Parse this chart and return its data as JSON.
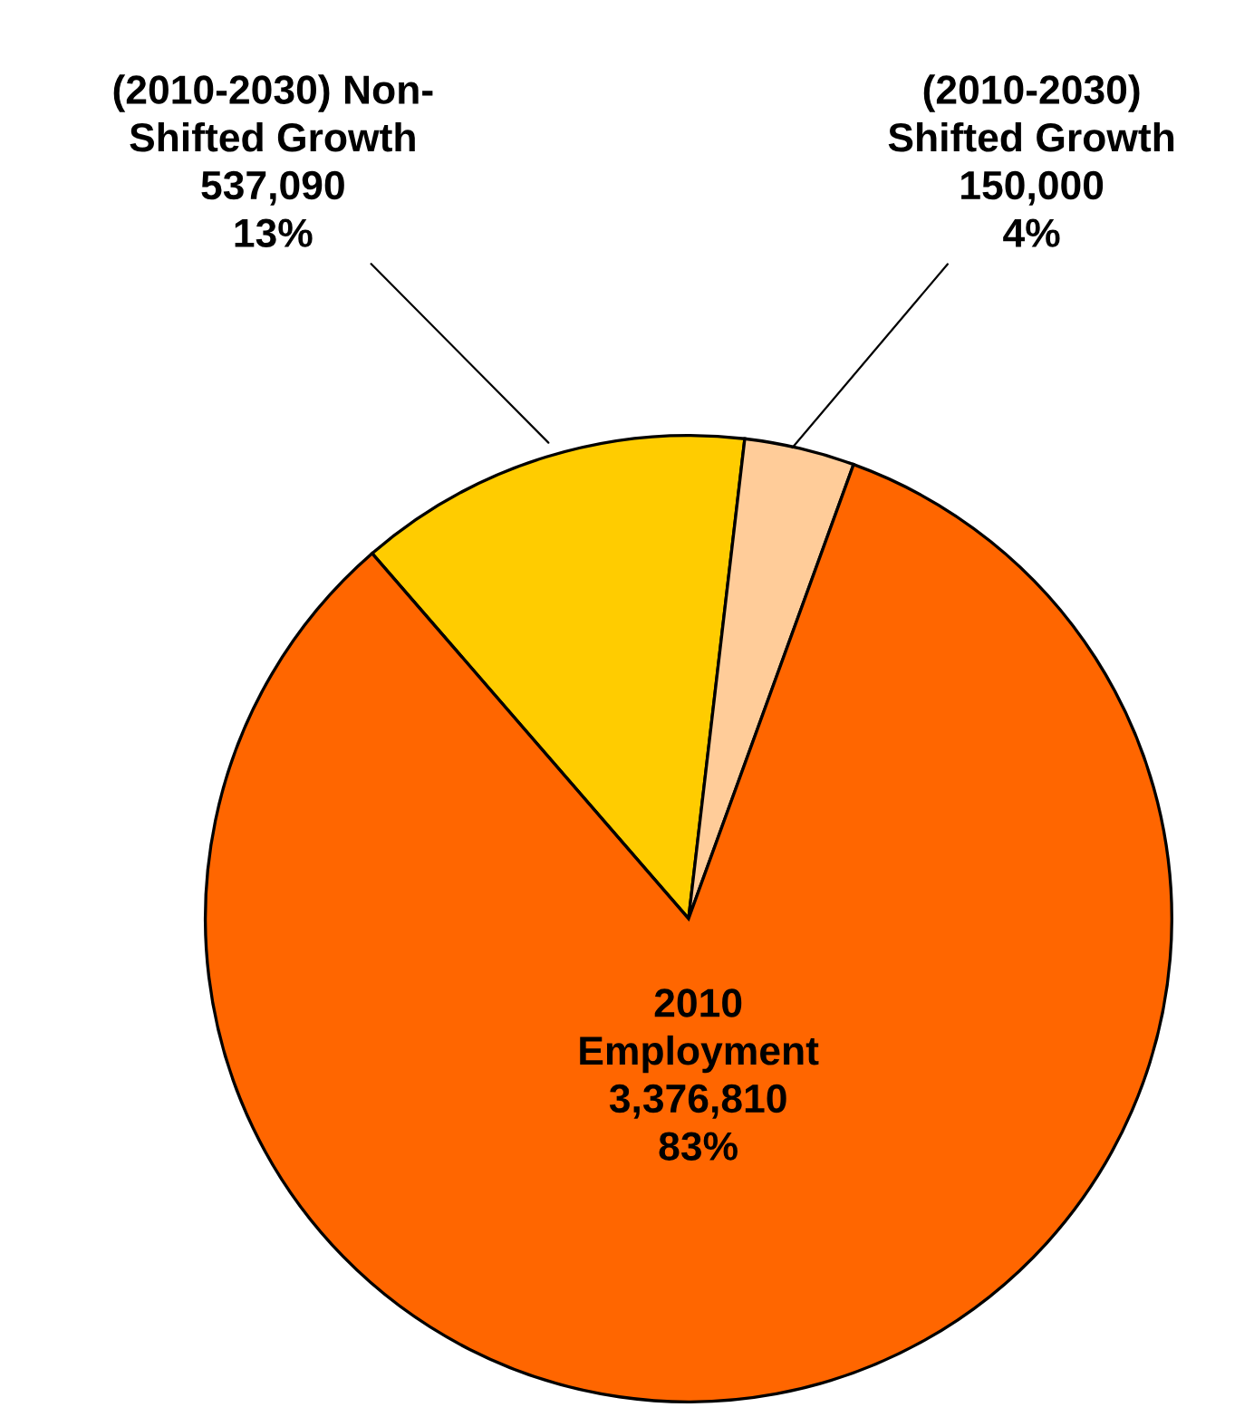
{
  "chart_data": {
    "type": "pie",
    "categories": [
      "(2010-2030) Non-\nShifted Growth",
      "(2010-2030)\nShifted Growth",
      "2010\nEmployment"
    ],
    "values": [
      537090,
      150000,
      3376810
    ],
    "value_labels": [
      "537,090\n13%",
      "150,000\n4%",
      "3,376,810\n83%"
    ],
    "colors": [
      "#ffcc00",
      "#ffcc99",
      "#ff6600"
    ],
    "legend": false
  }
}
